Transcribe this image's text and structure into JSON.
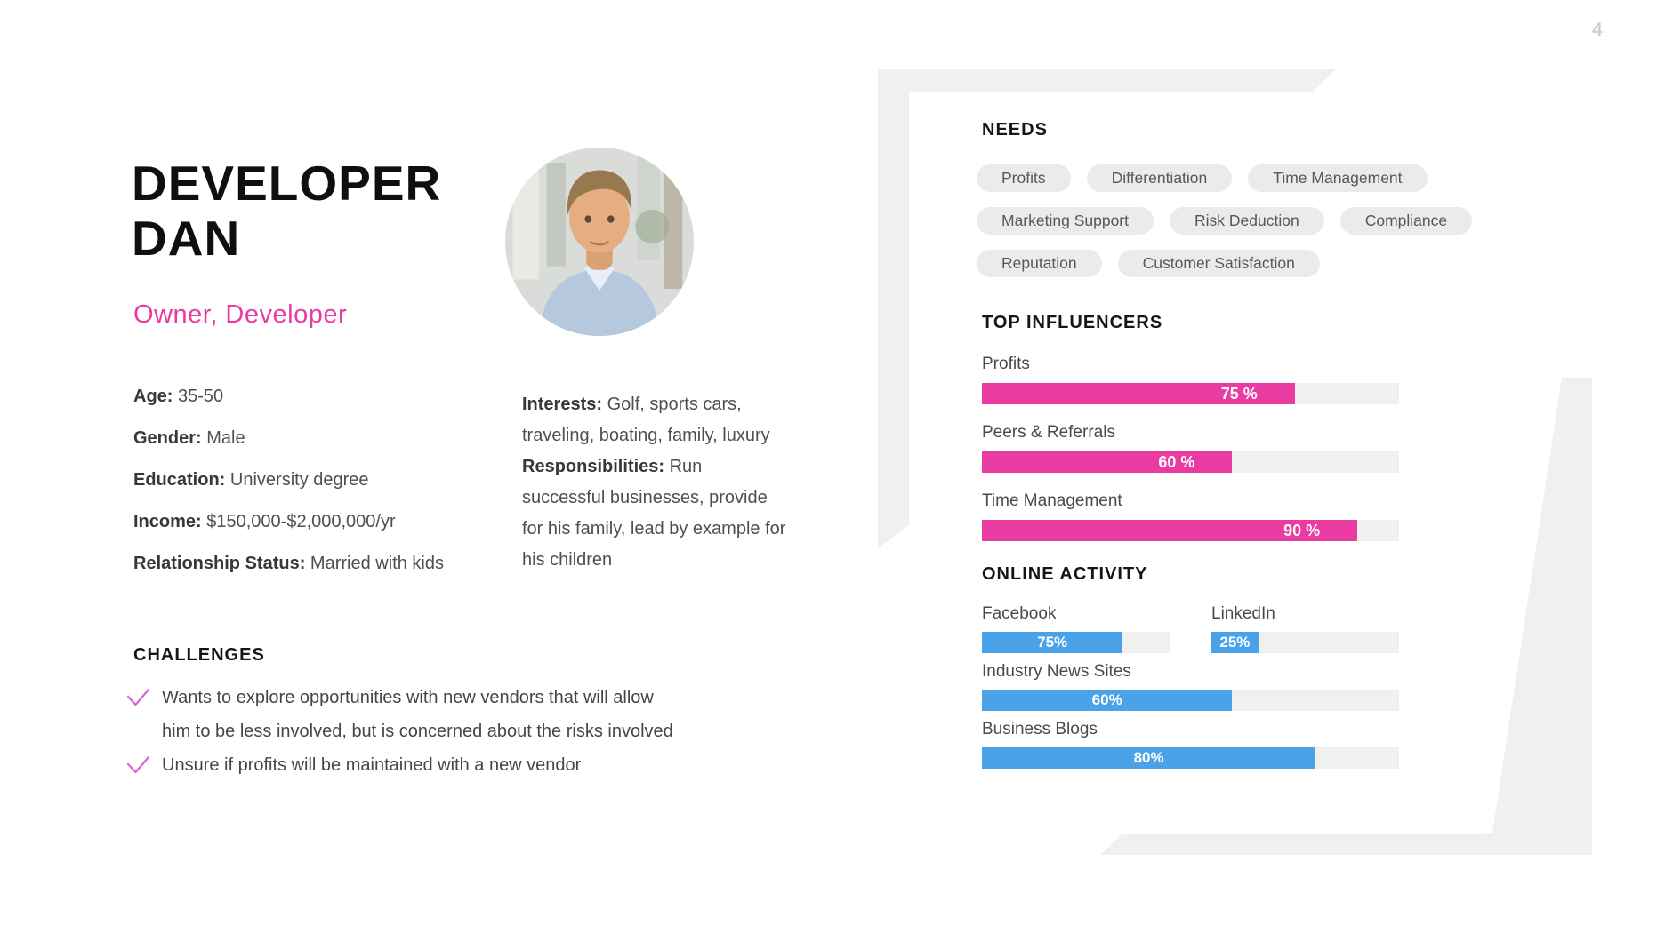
{
  "page": {
    "number": "4"
  },
  "persona": {
    "name": "DEVELOPER DAN",
    "role": "Owner, Developer",
    "demographics": [
      {
        "label": "Age:",
        "value": "35-50"
      },
      {
        "label": "Gender:",
        "value": "Male"
      },
      {
        "label": "Education:",
        "value": "University degree"
      },
      {
        "label": "Income:",
        "value": "$150,000-$2,000,000/yr"
      },
      {
        "label": "Relationship Status:",
        "value": "Married with kids"
      }
    ],
    "details": [
      {
        "label": "Interests:",
        "value": "Golf, sports cars, traveling, boating, family, luxury"
      },
      {
        "label": "Responsibilities:",
        "value": "Run successful businesses, provide for his family, lead by example for his children"
      }
    ]
  },
  "challenges": {
    "heading": "CHALLENGES",
    "items": [
      "Wants to explore opportunities with new vendors that will allow him to be less involved, but is concerned about the risks involved",
      "Unsure if profits will be maintained with a new vendor"
    ]
  },
  "needs": {
    "heading": "NEEDS",
    "tags": [
      "Profits",
      "Differentiation",
      "Time Management",
      "Marketing Support",
      "Risk Deduction",
      "Compliance",
      "Reputation",
      "Customer Satisfaction"
    ]
  },
  "top_influencers": {
    "heading": "TOP INFLUENCERS",
    "bars": [
      {
        "label": "Profits",
        "value": 75,
        "display": "75 %"
      },
      {
        "label": "Peers & Referrals",
        "value": 60,
        "display": "60 %"
      },
      {
        "label": "Time Management",
        "value": 90,
        "display": "90 %"
      }
    ]
  },
  "online_activity": {
    "heading": "ONLINE ACTIVITY",
    "bars": [
      {
        "label": "Facebook",
        "value": 75,
        "display": "75%",
        "layout": "half"
      },
      {
        "label": "LinkedIn",
        "value": 25,
        "display": "25%",
        "layout": "half"
      },
      {
        "label": "Industry News Sites",
        "value": 60,
        "display": "60%",
        "layout": "full"
      },
      {
        "label": "Business Blogs",
        "value": 80,
        "display": "80%",
        "layout": "full"
      }
    ]
  },
  "colors": {
    "accent_pink": "#e93ba1",
    "check_pink": "#d964cf",
    "bar_blue": "#4aa3e8",
    "track_gray": "#f0f0ef",
    "pill_gray": "#ebebe9",
    "deco_gray": "#f0f0ef",
    "page_number_gray": "#cfcfcf"
  }
}
